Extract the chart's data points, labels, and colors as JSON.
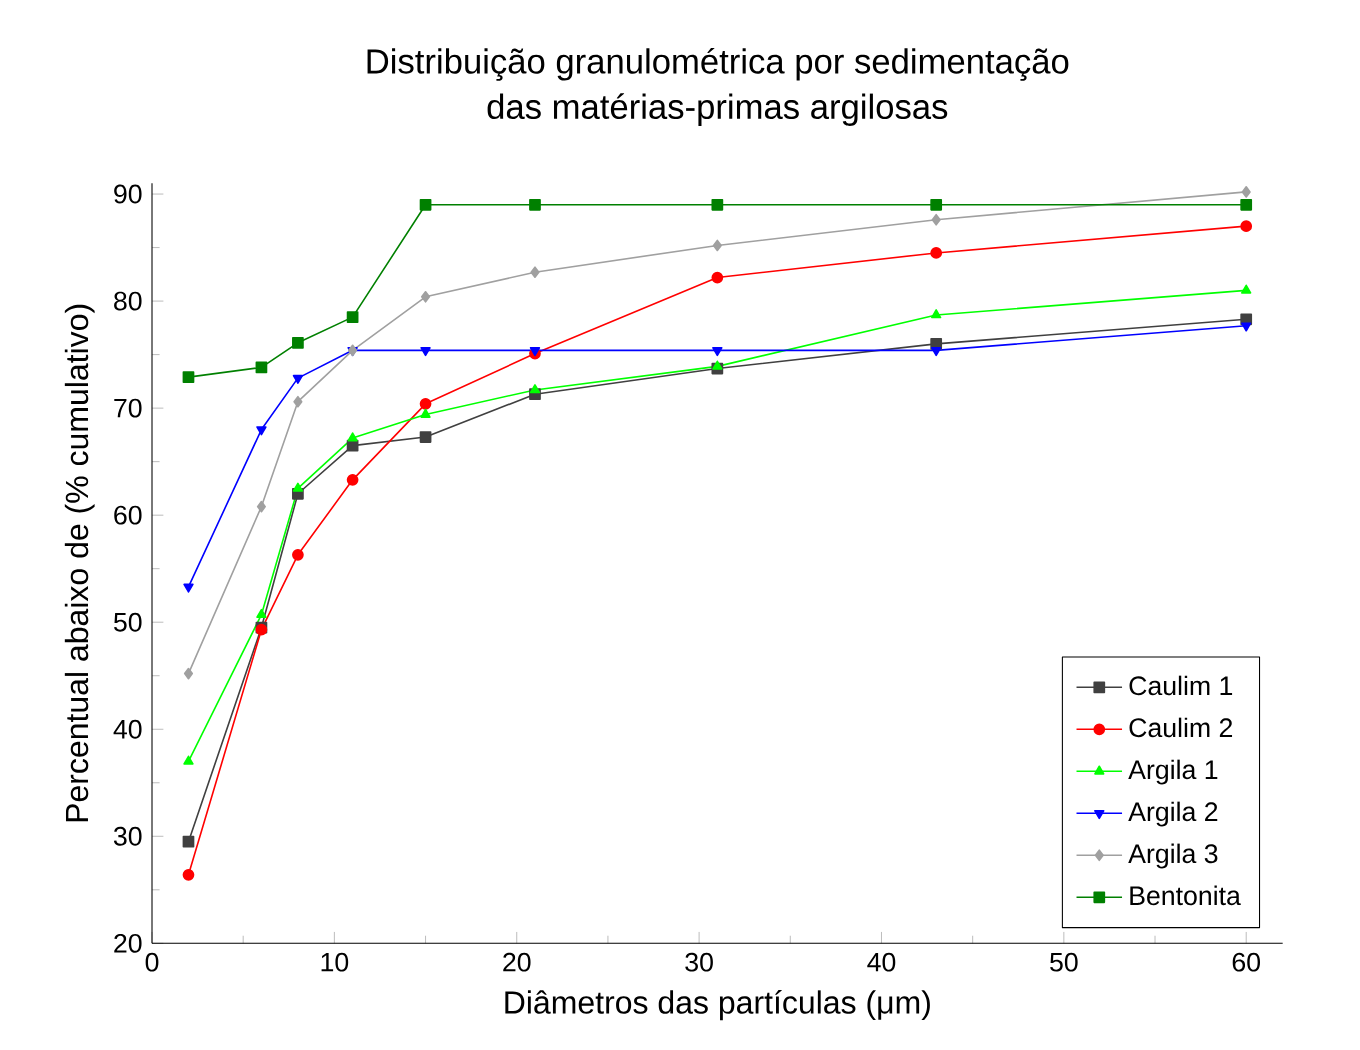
{
  "chart_data": {
    "type": "line",
    "title": "Distribuição granulométrica por sedimentação\ndas matérias-primas argilosas",
    "xlabel": "Diâmetros das partículas (μm)",
    "ylabel": "Percentual abaixo de (% cumulativo)",
    "x": [
      2,
      6,
      8,
      11,
      15,
      21,
      31,
      43,
      60
    ],
    "xlim": [
      0,
      62
    ],
    "ylim": [
      20,
      91
    ],
    "xticks": [
      0,
      10,
      20,
      30,
      40,
      50,
      60
    ],
    "yticks": [
      20,
      30,
      40,
      50,
      60,
      70,
      80,
      90
    ],
    "legend": "bottom right",
    "grid": false,
    "line_style": "solid",
    "series": [
      {
        "name": "Caulim 1",
        "color": "#404040",
        "marker": "square",
        "values": [
          29.5,
          49.5,
          62,
          66.5,
          67.3,
          71.3,
          73.7,
          76,
          78.3
        ]
      },
      {
        "name": "Caulim 2",
        "color": "#ff0000",
        "marker": "circle",
        "values": [
          26.4,
          49.3,
          56.3,
          63.3,
          70.4,
          75.1,
          82.2,
          84.5,
          87
        ]
      },
      {
        "name": "Argila 1",
        "color": "#00ff00",
        "marker": "triangle",
        "values": [
          37,
          50.7,
          62.5,
          67.2,
          69.4,
          71.7,
          73.9,
          78.7,
          81
        ]
      },
      {
        "name": "Argila 2",
        "color": "#0000ff",
        "marker": "triangle-down",
        "values": [
          53.3,
          68,
          72.8,
          75.4,
          75.4,
          75.4,
          75.4,
          75.4,
          77.7
        ]
      },
      {
        "name": "Argila 3",
        "color": "#a0a0a0",
        "marker": "diamond",
        "values": [
          45.2,
          60.8,
          70.6,
          75.4,
          80.4,
          82.7,
          85.2,
          87.6,
          90.2
        ]
      },
      {
        "name": "Bentonita",
        "color": "#008000",
        "marker": "square",
        "values": [
          72.9,
          73.8,
          76.1,
          78.5,
          89,
          89,
          89,
          89,
          89
        ]
      }
    ]
  }
}
